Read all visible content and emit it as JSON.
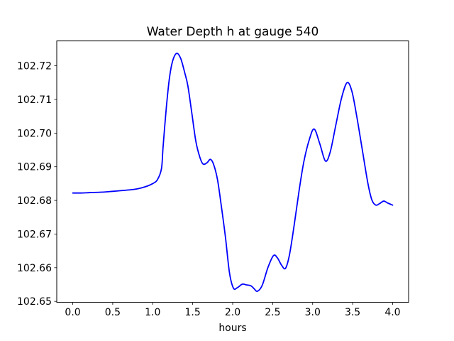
{
  "figure": {
    "background": "#ffffff"
  },
  "chart_data": {
    "type": "line",
    "title": "Water Depth h at gauge 540",
    "xlabel": "hours",
    "ylabel": "",
    "grid": false,
    "legend": null,
    "background": "#ffffff",
    "axis_color": "#000000",
    "xlim": [
      -0.2,
      4.2
    ],
    "ylim": [
      102.6497,
      102.7274
    ],
    "xticks": {
      "values": [
        0.0,
        0.5,
        1.0,
        1.5,
        2.0,
        2.5,
        3.0,
        3.5,
        4.0
      ],
      "labels": [
        "0.0",
        "0.5",
        "1.0",
        "1.5",
        "2.0",
        "2.5",
        "3.0",
        "3.5",
        "4.0"
      ]
    },
    "yticks": {
      "values": [
        102.65,
        102.66,
        102.67,
        102.68,
        102.69,
        102.7,
        102.71,
        102.72
      ],
      "labels": [
        "102.65",
        "102.66",
        "102.67",
        "102.68",
        "102.69",
        "102.70",
        "102.71",
        "102.72"
      ]
    },
    "series": [
      {
        "name": "water-depth-h",
        "color": "#0000ff",
        "linewidth": 1.8,
        "x": [
          0.0,
          0.1,
          0.2,
          0.3,
          0.4,
          0.5,
          0.6,
          0.7,
          0.8,
          0.9,
          1.0,
          1.06,
          1.11,
          1.13,
          1.17,
          1.21,
          1.25,
          1.3,
          1.35,
          1.4,
          1.44,
          1.49,
          1.54,
          1.59,
          1.63,
          1.68,
          1.72,
          1.76,
          1.81,
          1.86,
          1.91,
          1.96,
          2.01,
          2.06,
          2.12,
          2.17,
          2.23,
          2.27,
          2.31,
          2.37,
          2.44,
          2.51,
          2.56,
          2.61,
          2.66,
          2.71,
          2.77,
          2.83,
          2.89,
          2.96,
          3.02,
          3.09,
          3.16,
          3.22,
          3.29,
          3.36,
          3.43,
          3.49,
          3.55,
          3.62,
          3.69,
          3.74,
          3.79,
          3.84,
          3.89,
          3.94,
          4.0
        ],
        "y": [
          102.6822,
          102.6822,
          102.6823,
          102.6824,
          102.6825,
          102.6827,
          102.6829,
          102.6831,
          102.6834,
          102.684,
          102.685,
          102.6862,
          102.6895,
          102.696,
          102.7075,
          102.7165,
          102.7215,
          102.7237,
          102.7222,
          102.718,
          102.714,
          102.7058,
          102.6975,
          102.6928,
          102.6908,
          102.6912,
          102.6922,
          102.6908,
          102.6862,
          102.678,
          102.669,
          102.6585,
          102.6539,
          102.6541,
          102.6551,
          102.6549,
          102.6546,
          102.6537,
          102.653,
          102.6548,
          102.66,
          102.6636,
          102.6629,
          102.6608,
          102.6598,
          102.6638,
          102.6728,
          102.6828,
          102.6915,
          102.6982,
          102.7012,
          102.6968,
          102.6917,
          102.6944,
          102.7024,
          102.7103,
          102.715,
          102.7125,
          102.7052,
          102.6952,
          102.6852,
          102.6802,
          102.6786,
          102.6791,
          102.6798,
          102.6792,
          102.6786
        ]
      }
    ]
  }
}
